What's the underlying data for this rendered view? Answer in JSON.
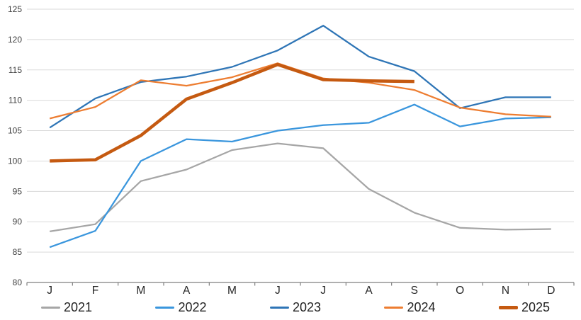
{
  "chart_data": {
    "type": "line",
    "title": "",
    "xlabel": "",
    "ylabel": "",
    "x_categories": [
      "J",
      "F",
      "M",
      "A",
      "M",
      "J",
      "J",
      "A",
      "S",
      "O",
      "N",
      "D"
    ],
    "ylim": [
      80,
      125
    ],
    "ytick_step": 5,
    "ytick_labels": [
      "80",
      "85",
      "90",
      "95",
      "100",
      "105",
      "110",
      "115",
      "120",
      "125"
    ],
    "grid": "horizontal",
    "legend_position": "bottom",
    "series": [
      {
        "name": "2021",
        "color": "#A6A6A6",
        "stroke_width": 2.25,
        "values": [
          88.4,
          89.6,
          96.7,
          98.6,
          101.8,
          102.9,
          102.1,
          95.4,
          91.5,
          89.0,
          88.7,
          88.8
        ]
      },
      {
        "name": "2022",
        "color": "#3A96DD",
        "stroke_width": 2.25,
        "values": [
          85.8,
          88.5,
          100.0,
          103.6,
          103.2,
          105.0,
          105.9,
          106.3,
          109.3,
          105.7,
          107.0,
          107.2
        ]
      },
      {
        "name": "2023",
        "color": "#2E75B6",
        "stroke_width": 2.25,
        "values": [
          105.5,
          110.3,
          113.0,
          113.9,
          115.5,
          118.2,
          122.3,
          117.2,
          114.8,
          108.7,
          110.5,
          110.5
        ]
      },
      {
        "name": "2024",
        "color": "#ED7D31",
        "stroke_width": 2.25,
        "values": [
          107.0,
          108.9,
          113.3,
          112.4,
          113.8,
          116.1,
          113.6,
          112.9,
          111.7,
          108.8,
          107.7,
          107.3
        ]
      },
      {
        "name": "2025",
        "color": "#C55A11",
        "stroke_width": 4.5,
        "values": [
          100.0,
          100.2,
          104.2,
          110.2,
          112.9,
          115.9,
          113.4,
          113.2,
          113.1,
          null,
          null,
          null
        ]
      }
    ],
    "colors": {
      "background": "#FFFFFF",
      "gridline": "#D9D9D9",
      "axis_line": "#7F7F7F",
      "y_tick_label": "#404040",
      "x_month_label": "#262626"
    }
  }
}
